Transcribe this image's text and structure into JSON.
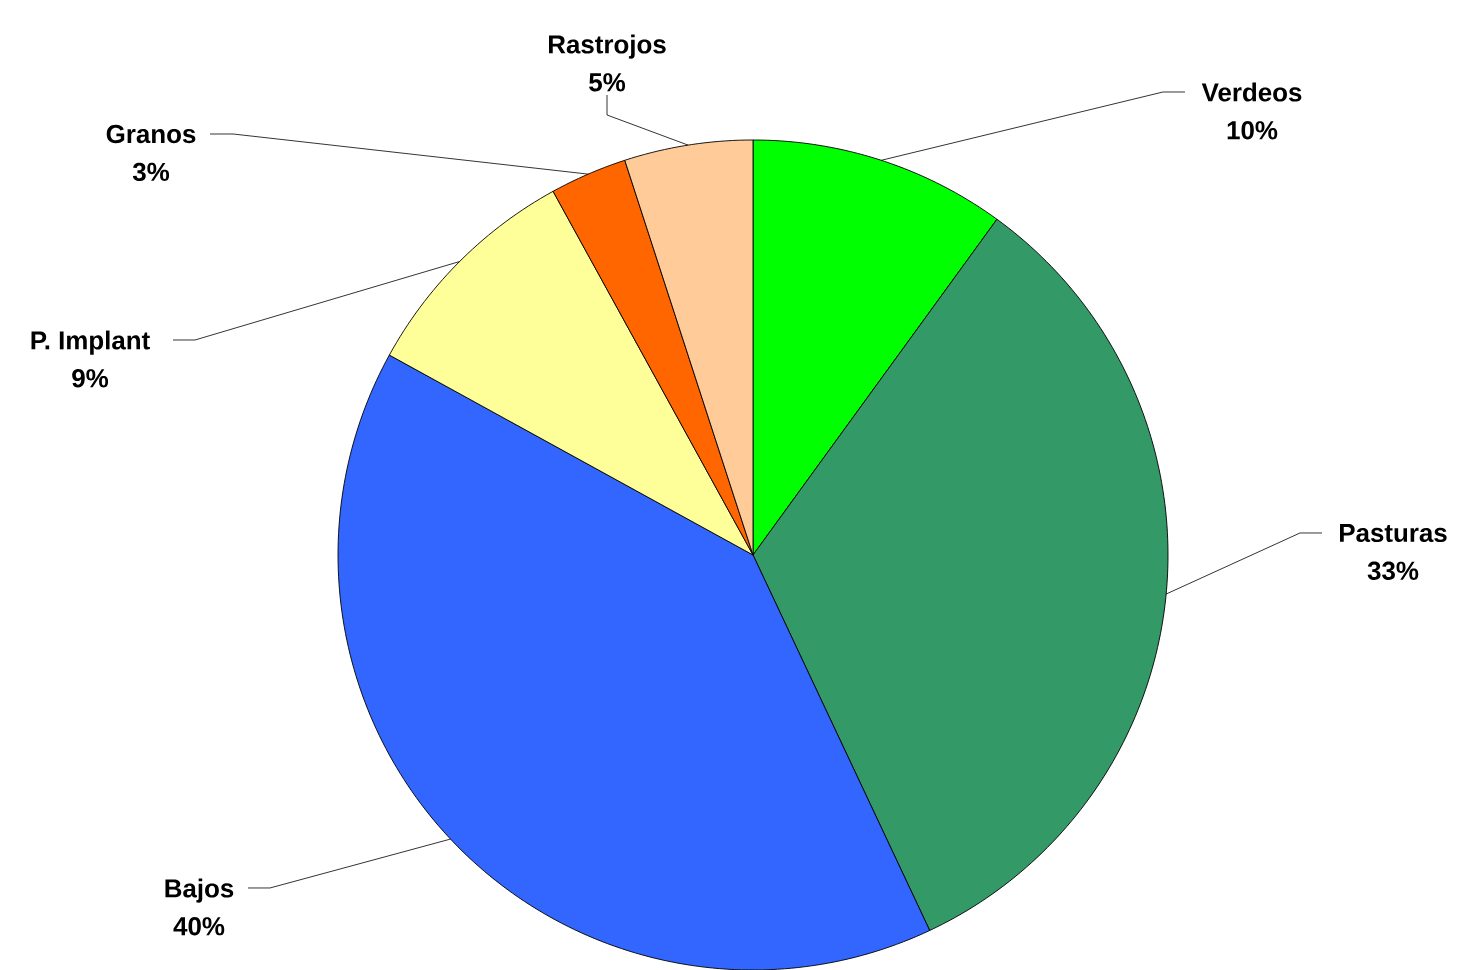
{
  "chart_data": {
    "type": "pie",
    "categories": [
      "Verdeos",
      "Pasturas",
      "Bajos",
      "P. Implant",
      "Granos",
      "Rastrojos"
    ],
    "values": [
      10,
      33,
      40,
      9,
      3,
      5
    ],
    "value_labels": [
      "10%",
      "33%",
      "40%",
      "9%",
      "3%",
      "5%"
    ],
    "colors": [
      "#00ff00",
      "#339966",
      "#3366ff",
      "#ffff99",
      "#ff6600",
      "#ffcc99"
    ]
  }
}
